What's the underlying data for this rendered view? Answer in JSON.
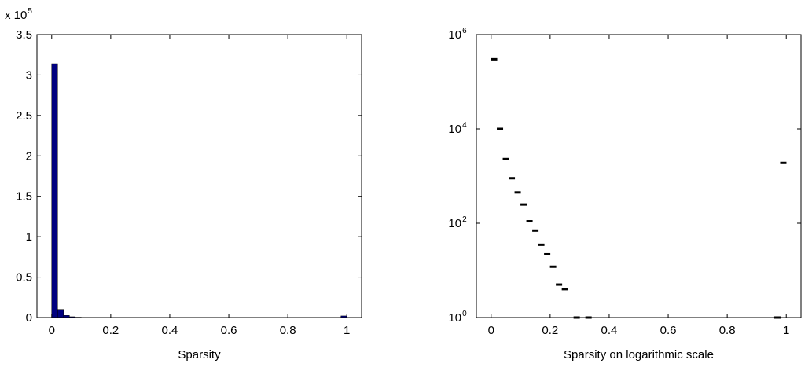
{
  "chart_data": [
    {
      "type": "bar",
      "title": "",
      "xlabel": "Sparsity",
      "ylabel": "",
      "xlim": [
        -0.05,
        1.05
      ],
      "ylim": [
        0,
        350000
      ],
      "y_multiplier_label": "x 10",
      "y_multiplier_exponent": "5",
      "xticks": [
        0,
        0.2,
        0.4,
        0.6,
        0.8,
        1
      ],
      "xtick_labels": [
        "0",
        "0.2",
        "0.4",
        "0.6",
        "0.8",
        "1"
      ],
      "yticks": [
        0,
        50000,
        100000,
        150000,
        200000,
        250000,
        300000,
        350000
      ],
      "ytick_labels": [
        "0",
        "0.5",
        "1",
        "1.5",
        "2",
        "2.5",
        "3",
        "3.5"
      ],
      "bar_width": 0.02,
      "bar_color": "#00007f",
      "x": [
        0.01,
        0.03,
        0.05,
        0.07,
        0.09,
        0.99
      ],
      "values": [
        314000,
        10000,
        2600,
        1000,
        450,
        2000
      ],
      "grid": false
    },
    {
      "type": "scatter",
      "title": "",
      "xlabel": "Sparsity on logarithmic scale",
      "ylabel": "",
      "yscale": "log",
      "xlim": [
        -0.05,
        1.05
      ],
      "ylim": [
        1,
        1000000
      ],
      "xticks": [
        0,
        0.2,
        0.4,
        0.6,
        0.8,
        1
      ],
      "xtick_labels": [
        "0",
        "0.2",
        "0.4",
        "0.6",
        "0.8",
        "1"
      ],
      "yticks": [
        1,
        100,
        10000,
        1000000
      ],
      "ytick_base": "10",
      "ytick_exponents": [
        "0",
        "2",
        "4",
        "6"
      ],
      "marker": "dash",
      "marker_color": "#000000",
      "x": [
        0.01,
        0.03,
        0.05,
        0.07,
        0.09,
        0.11,
        0.13,
        0.15,
        0.17,
        0.19,
        0.21,
        0.23,
        0.25,
        0.29,
        0.33,
        0.97,
        0.99
      ],
      "y": [
        300000,
        10000,
        2300,
        900,
        450,
        250,
        110,
        70,
        35,
        22,
        12,
        5,
        4,
        1,
        1,
        1,
        1900
      ],
      "grid": false
    }
  ]
}
